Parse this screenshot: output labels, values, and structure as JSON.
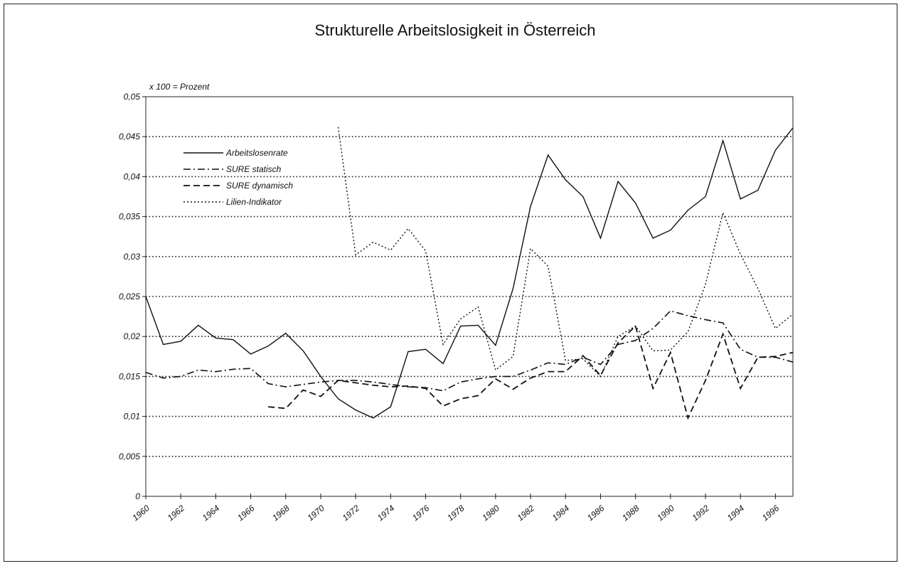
{
  "chart_data": {
    "type": "line",
    "title": "Strukturelle Arbeitslosigkeit in Österreich",
    "ylabel": "x 100 = Prozent",
    "x": [
      1960,
      1961,
      1962,
      1963,
      1964,
      1965,
      1966,
      1967,
      1968,
      1969,
      1970,
      1971,
      1972,
      1973,
      1974,
      1975,
      1976,
      1977,
      1978,
      1979,
      1980,
      1981,
      1982,
      1983,
      1984,
      1985,
      1986,
      1987,
      1988,
      1989,
      1990,
      1991,
      1992,
      1993,
      1994,
      1995,
      1996,
      1997
    ],
    "xlim": [
      1960,
      1997
    ],
    "xticks": [
      1960,
      1962,
      1964,
      1966,
      1968,
      1970,
      1972,
      1974,
      1976,
      1978,
      1980,
      1982,
      1984,
      1986,
      1988,
      1990,
      1992,
      1994,
      1996
    ],
    "ylim": [
      0,
      0.05
    ],
    "yticks": [
      0,
      {
        "value": 0.005,
        "label": "0,005"
      },
      {
        "value": 0.01,
        "label": "0,01"
      },
      {
        "value": 0.015,
        "label": "0,015"
      },
      {
        "value": 0.02,
        "label": "0,02"
      },
      {
        "value": 0.025,
        "label": "0,025"
      },
      {
        "value": 0.03,
        "label": "0,03"
      },
      {
        "value": 0.035,
        "label": "0,035"
      },
      {
        "value": 0.04,
        "label": "0,04"
      },
      {
        "value": 0.045,
        "label": "0,045"
      },
      {
        "value": 0.05,
        "label": "0,05"
      }
    ],
    "grid": true,
    "legend": "upper left",
    "series": [
      {
        "name": "Arbeitslosenrate",
        "color": "#111111",
        "dash": "solid",
        "values": [
          0.025,
          0.019,
          0.0194,
          0.0214,
          0.0198,
          0.0196,
          0.0178,
          0.0188,
          0.0204,
          0.0182,
          0.015,
          0.0122,
          0.0108,
          0.0098,
          0.0112,
          0.0181,
          0.0184,
          0.0166,
          0.0213,
          0.0214,
          0.0189,
          0.026,
          0.0363,
          0.0427,
          0.0396,
          0.0375,
          0.0323,
          0.0394,
          0.0367,
          0.0323,
          0.0333,
          0.0358,
          0.0375,
          0.0445,
          0.0372,
          0.0383,
          0.0433,
          0.0461
        ]
      },
      {
        "name": "SURE statisch",
        "color": "#111111",
        "dash": "dashdot",
        "values": [
          0.0155,
          0.0148,
          0.015,
          0.0158,
          0.0156,
          0.0159,
          0.016,
          0.0141,
          0.0137,
          0.014,
          0.0143,
          0.0145,
          0.0145,
          0.0143,
          0.014,
          0.0137,
          0.0136,
          0.0132,
          0.0143,
          0.0147,
          0.015,
          0.015,
          0.0158,
          0.0167,
          0.0165,
          0.0174,
          0.0165,
          0.019,
          0.0195,
          0.021,
          0.0232,
          0.0226,
          0.0221,
          0.0217,
          0.0184,
          0.0174,
          0.0174,
          0.0168
        ]
      },
      {
        "name": "SURE dynamisch",
        "color": "#111111",
        "dash": "dashed",
        "values": [
          null,
          null,
          null,
          null,
          null,
          null,
          null,
          0.0112,
          0.011,
          0.0133,
          0.0125,
          0.0145,
          0.0142,
          0.0139,
          0.0137,
          0.0138,
          0.0135,
          0.0113,
          0.0122,
          0.0126,
          0.0147,
          0.0134,
          0.0148,
          0.0156,
          0.0156,
          0.0176,
          0.0151,
          0.0192,
          0.0213,
          0.0135,
          0.018,
          0.0098,
          0.0145,
          0.0203,
          0.0135,
          0.0174,
          0.0175,
          0.018
        ]
      },
      {
        "name": "Lilien-Indikator",
        "color": "#111111",
        "dash": "dotted",
        "values": [
          null,
          null,
          null,
          null,
          null,
          null,
          null,
          null,
          null,
          null,
          null,
          0.0462,
          0.0302,
          0.0318,
          0.0308,
          0.0335,
          0.0307,
          0.019,
          0.0222,
          0.0237,
          0.0158,
          0.0175,
          0.031,
          0.0288,
          0.017,
          0.0172,
          0.015,
          0.02,
          0.0213,
          0.0182,
          0.0183,
          0.0206,
          0.0265,
          0.0355,
          0.0303,
          0.026,
          0.021,
          0.0228
        ]
      }
    ]
  }
}
